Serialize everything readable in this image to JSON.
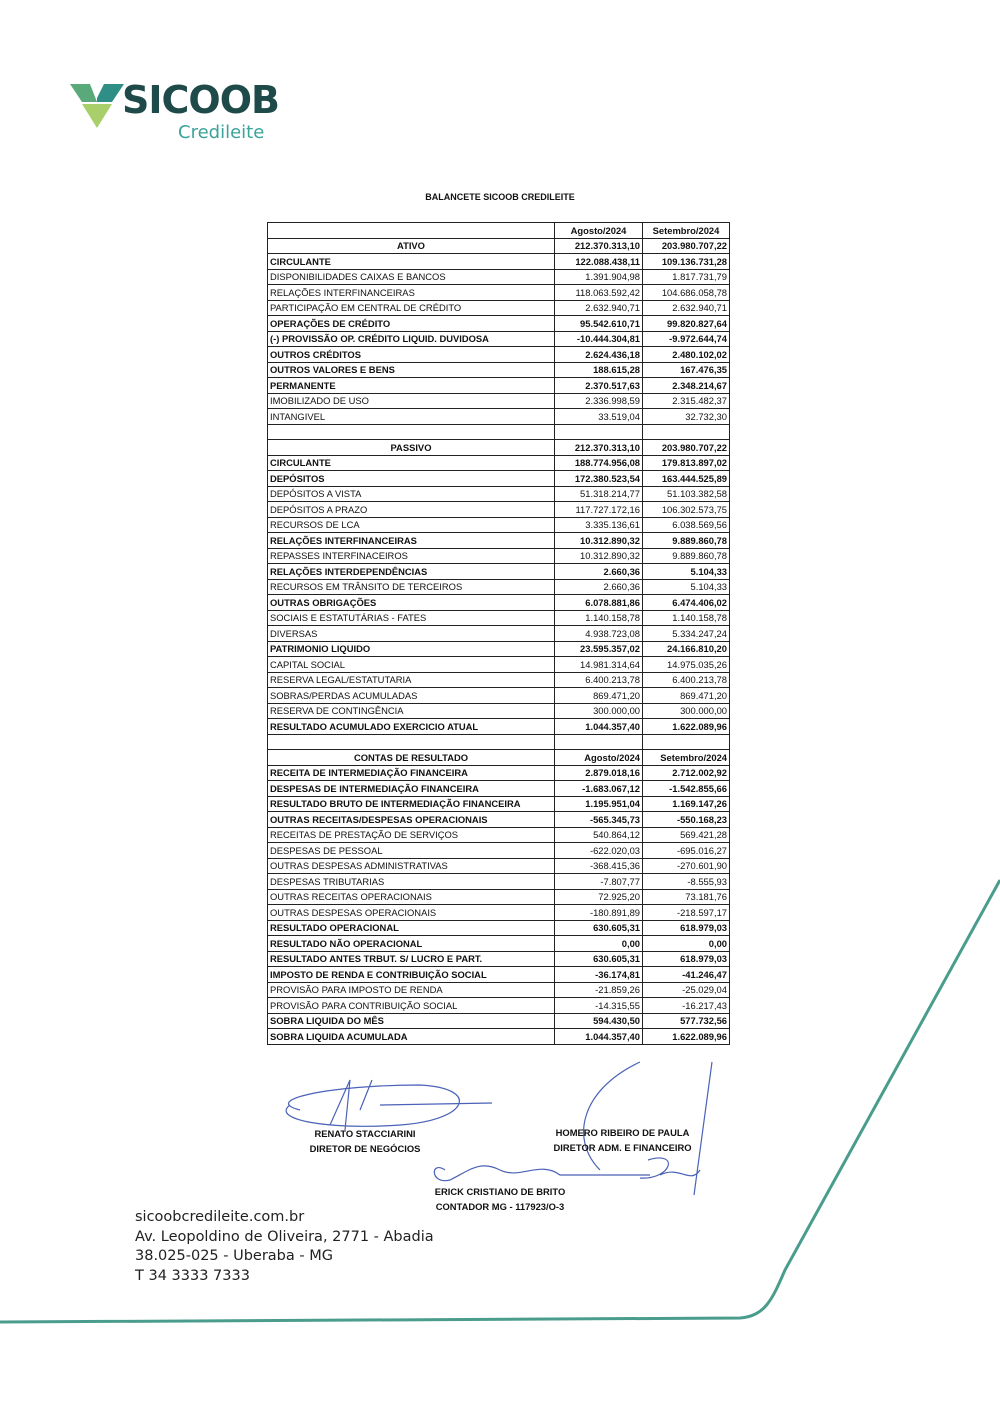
{
  "logo": {
    "word": "SICOOB",
    "sub": "Credileite",
    "colors": {
      "dark": "#1e4a4a",
      "teal": "#3aa39a",
      "green": "#8dc26b"
    }
  },
  "title": "BALANCETE SICOOB CREDILEITE",
  "table": {
    "columns": [
      "",
      "Agosto/2024",
      "Setembro/2024"
    ],
    "rows": [
      {
        "label": "ATIVO",
        "ago": "212.370.313,10",
        "set": "203.980.707,22",
        "bold": true,
        "center": true
      },
      {
        "label": "CIRCULANTE",
        "ago": "122.088.438,11",
        "set": "109.136.731,28",
        "bold": true
      },
      {
        "label": "DISPONIBILIDADES CAIXAS E BANCOS",
        "ago": "1.391.904,98",
        "set": "1.817.731,79"
      },
      {
        "label": "RELAÇÕES INTERFINANCEIRAS",
        "ago": "118.063.592,42",
        "set": "104.686.058,78"
      },
      {
        "label": "PARTICIPAÇÃO EM CENTRAL DE CRÉDITO",
        "ago": "2.632.940,71",
        "set": "2.632.940,71"
      },
      {
        "label": "OPERAÇÕES DE CRÉDITO",
        "ago": "95.542.610,71",
        "set": "99.820.827,64",
        "bold": true
      },
      {
        "label": "(-) PROVISSÃO OP. CRÉDITO LIQUID. DUVIDOSA",
        "ago": "-10.444.304,81",
        "set": "-9.972.644,74",
        "bold": true
      },
      {
        "label": "OUTROS CRÉDITOS",
        "ago": "2.624.436,18",
        "set": "2.480.102,02",
        "bold": true
      },
      {
        "label": "OUTROS VALORES E BENS",
        "ago": "188.615,28",
        "set": "167.476,35",
        "bold": true
      },
      {
        "label": "PERMANENTE",
        "ago": "2.370.517,63",
        "set": "2.348.214,67",
        "bold": true
      },
      {
        "label": "IMOBILIZADO DE USO",
        "ago": "2.336.998,59",
        "set": "2.315.482,37"
      },
      {
        "label": "INTANGIVEL",
        "ago": "33.519,04",
        "set": "32.732,30"
      },
      {
        "blank": true
      },
      {
        "label": "PASSIVO",
        "ago": "212.370.313,10",
        "set": "203.980.707,22",
        "bold": true,
        "center": true
      },
      {
        "label": "CIRCULANTE",
        "ago": "188.774.956,08",
        "set": "179.813.897,02",
        "bold": true
      },
      {
        "label": "DEPÓSITOS",
        "ago": "172.380.523,54",
        "set": "163.444.525,89",
        "bold": true
      },
      {
        "label": "DEPÓSITOS A VISTA",
        "ago": "51.318.214,77",
        "set": "51.103.382,58"
      },
      {
        "label": "DEPÓSITOS A PRAZO",
        "ago": "117.727.172,16",
        "set": "106.302.573,75"
      },
      {
        "label": "RECURSOS DE LCA",
        "ago": "3.335.136,61",
        "set": "6.038.569,56"
      },
      {
        "label": "RELAÇÕES INTERFINANCEIRAS",
        "ago": "10.312.890,32",
        "set": "9.889.860,78",
        "bold": true
      },
      {
        "label": "REPASSES INTERFINACEIROS",
        "ago": "10.312.890,32",
        "set": "9.889.860,78"
      },
      {
        "label": "RELAÇÕES INTERDEPENDÊNCIAS",
        "ago": "2.660,36",
        "set": "5.104,33",
        "bold": true
      },
      {
        "label": "RECURSOS EM TRÂNSITO DE TERCEIROS",
        "ago": "2.660,36",
        "set": "5.104,33"
      },
      {
        "label": "OUTRAS OBRIGAÇÕES",
        "ago": "6.078.881,86",
        "set": "6.474.406,02",
        "bold": true
      },
      {
        "label": "SOCIAIS E ESTATUTÁRIAS - FATES",
        "ago": "1.140.158,78",
        "set": "1.140.158,78"
      },
      {
        "label": "DIVERSAS",
        "ago": "4.938.723,08",
        "set": "5.334.247,24"
      },
      {
        "label": "PATRIMONIO LIQUIDO",
        "ago": "23.595.357,02",
        "set": "24.166.810,20",
        "bold": true
      },
      {
        "label": "CAPITAL SOCIAL",
        "ago": "14.981.314,64",
        "set": "14.975.035,26"
      },
      {
        "label": "RESERVA LEGAL/ESTATUTARIA",
        "ago": "6.400.213,78",
        "set": "6.400.213,78"
      },
      {
        "label": "SOBRAS/PERDAS ACUMULADAS",
        "ago": "869.471,20",
        "set": "869.471,20"
      },
      {
        "label": "RESERVA DE CONTINGÊNCIA",
        "ago": "300.000,00",
        "set": "300.000,00"
      },
      {
        "label": "RESULTADO ACUMULADO EXERCICIO ATUAL",
        "ago": "1.044.357,40",
        "set": "1.622.089,96",
        "bold": true
      },
      {
        "blank": true
      },
      {
        "label": "CONTAS DE RESULTADO",
        "ago": "Agosto/2024",
        "set": "Setembro/2024",
        "bold": true,
        "center": true
      },
      {
        "label": "RECEITA DE INTERMEDIAÇÃO FINANCEIRA",
        "ago": "2.879.018,16",
        "set": "2.712.002,92",
        "bold": true
      },
      {
        "label": "DESPESAS DE INTERMEDIAÇÃO FINANCEIRA",
        "ago": "-1.683.067,12",
        "set": "-1.542.855,66",
        "bold": true
      },
      {
        "label": "RESULTADO BRUTO DE INTERMEDIAÇÃO FINANCEIRA",
        "ago": "1.195.951,04",
        "set": "1.169.147,26",
        "bold": true
      },
      {
        "label": "OUTRAS RECEITAS/DESPESAS OPERACIONAIS",
        "ago": "-565.345,73",
        "set": "-550.168,23",
        "bold": true
      },
      {
        "label": "RECEITAS DE PRESTAÇÃO DE SERVIÇOS",
        "ago": "540.864,12",
        "set": "569.421,28"
      },
      {
        "label": "DESPESAS DE PESSOAL",
        "ago": "-622.020,03",
        "set": "-695.016,27"
      },
      {
        "label": "OUTRAS DESPESAS ADMINISTRATIVAS",
        "ago": "-368.415,36",
        "set": "-270.601,90"
      },
      {
        "label": "DESPESAS TRIBUTARIAS",
        "ago": "-7.807,77",
        "set": "-8.555,93"
      },
      {
        "label": "OUTRAS RECEITAS OPERACIONAIS",
        "ago": "72.925,20",
        "set": "73.181,76"
      },
      {
        "label": "OUTRAS DESPESAS OPERACIONAIS",
        "ago": "-180.891,89",
        "set": "-218.597,17"
      },
      {
        "label": "RESULTADO OPERACIONAL",
        "ago": "630.605,31",
        "set": "618.979,03",
        "bold": true
      },
      {
        "label": "RESULTADO NÃO OPERACIONAL",
        "ago": "0,00",
        "set": "0,00",
        "bold": true
      },
      {
        "label": "RESULTADO ANTES TRBUT. S/ LUCRO E PART.",
        "ago": "630.605,31",
        "set": "618.979,03",
        "bold": true
      },
      {
        "label": "IMPOSTO DE RENDA E CONTRIBUIÇÃO SOCIAL",
        "ago": "-36.174,81",
        "set": "-41.246,47",
        "bold": true
      },
      {
        "label": "PROVISÃO PARA IMPOSTO DE RENDA",
        "ago": "-21.859,26",
        "set": "-25.029,04"
      },
      {
        "label": "PROVISÃO PARA CONTRIBUIÇÃO SOCIAL",
        "ago": "-14.315,55",
        "set": "-16.217,43"
      },
      {
        "label": "SOBRA LIQUIDA DO MÊS",
        "ago": "594.430,50",
        "set": "577.732,56",
        "bold": true
      },
      {
        "label": "SOBRA LIQUIDA ACUMULADA",
        "ago": "1.044.357,40",
        "set": "1.622.089,96",
        "bold": true
      }
    ]
  },
  "signatures": [
    {
      "name": "RENATO STACCIARINI",
      "role": "DIRETOR DE NEGÓCIOS"
    },
    {
      "name": "HOMERO RIBEIRO DE PAULA",
      "role": "DIRETOR ADM. E FINANCEIRO"
    },
    {
      "name": "ERICK CRISTIANO DE BRITO",
      "role": "CONTADOR MG - 117923/O-3"
    }
  ],
  "footer": {
    "site": "sicoobcredileite.com.br",
    "address": "Av. Leopoldino de Oliveira, 2771 - Abadia",
    "city": "38.025-025 - Uberaba - MG",
    "phone": "T 34 3333 7333"
  },
  "accent_color": "#4a9c8c"
}
